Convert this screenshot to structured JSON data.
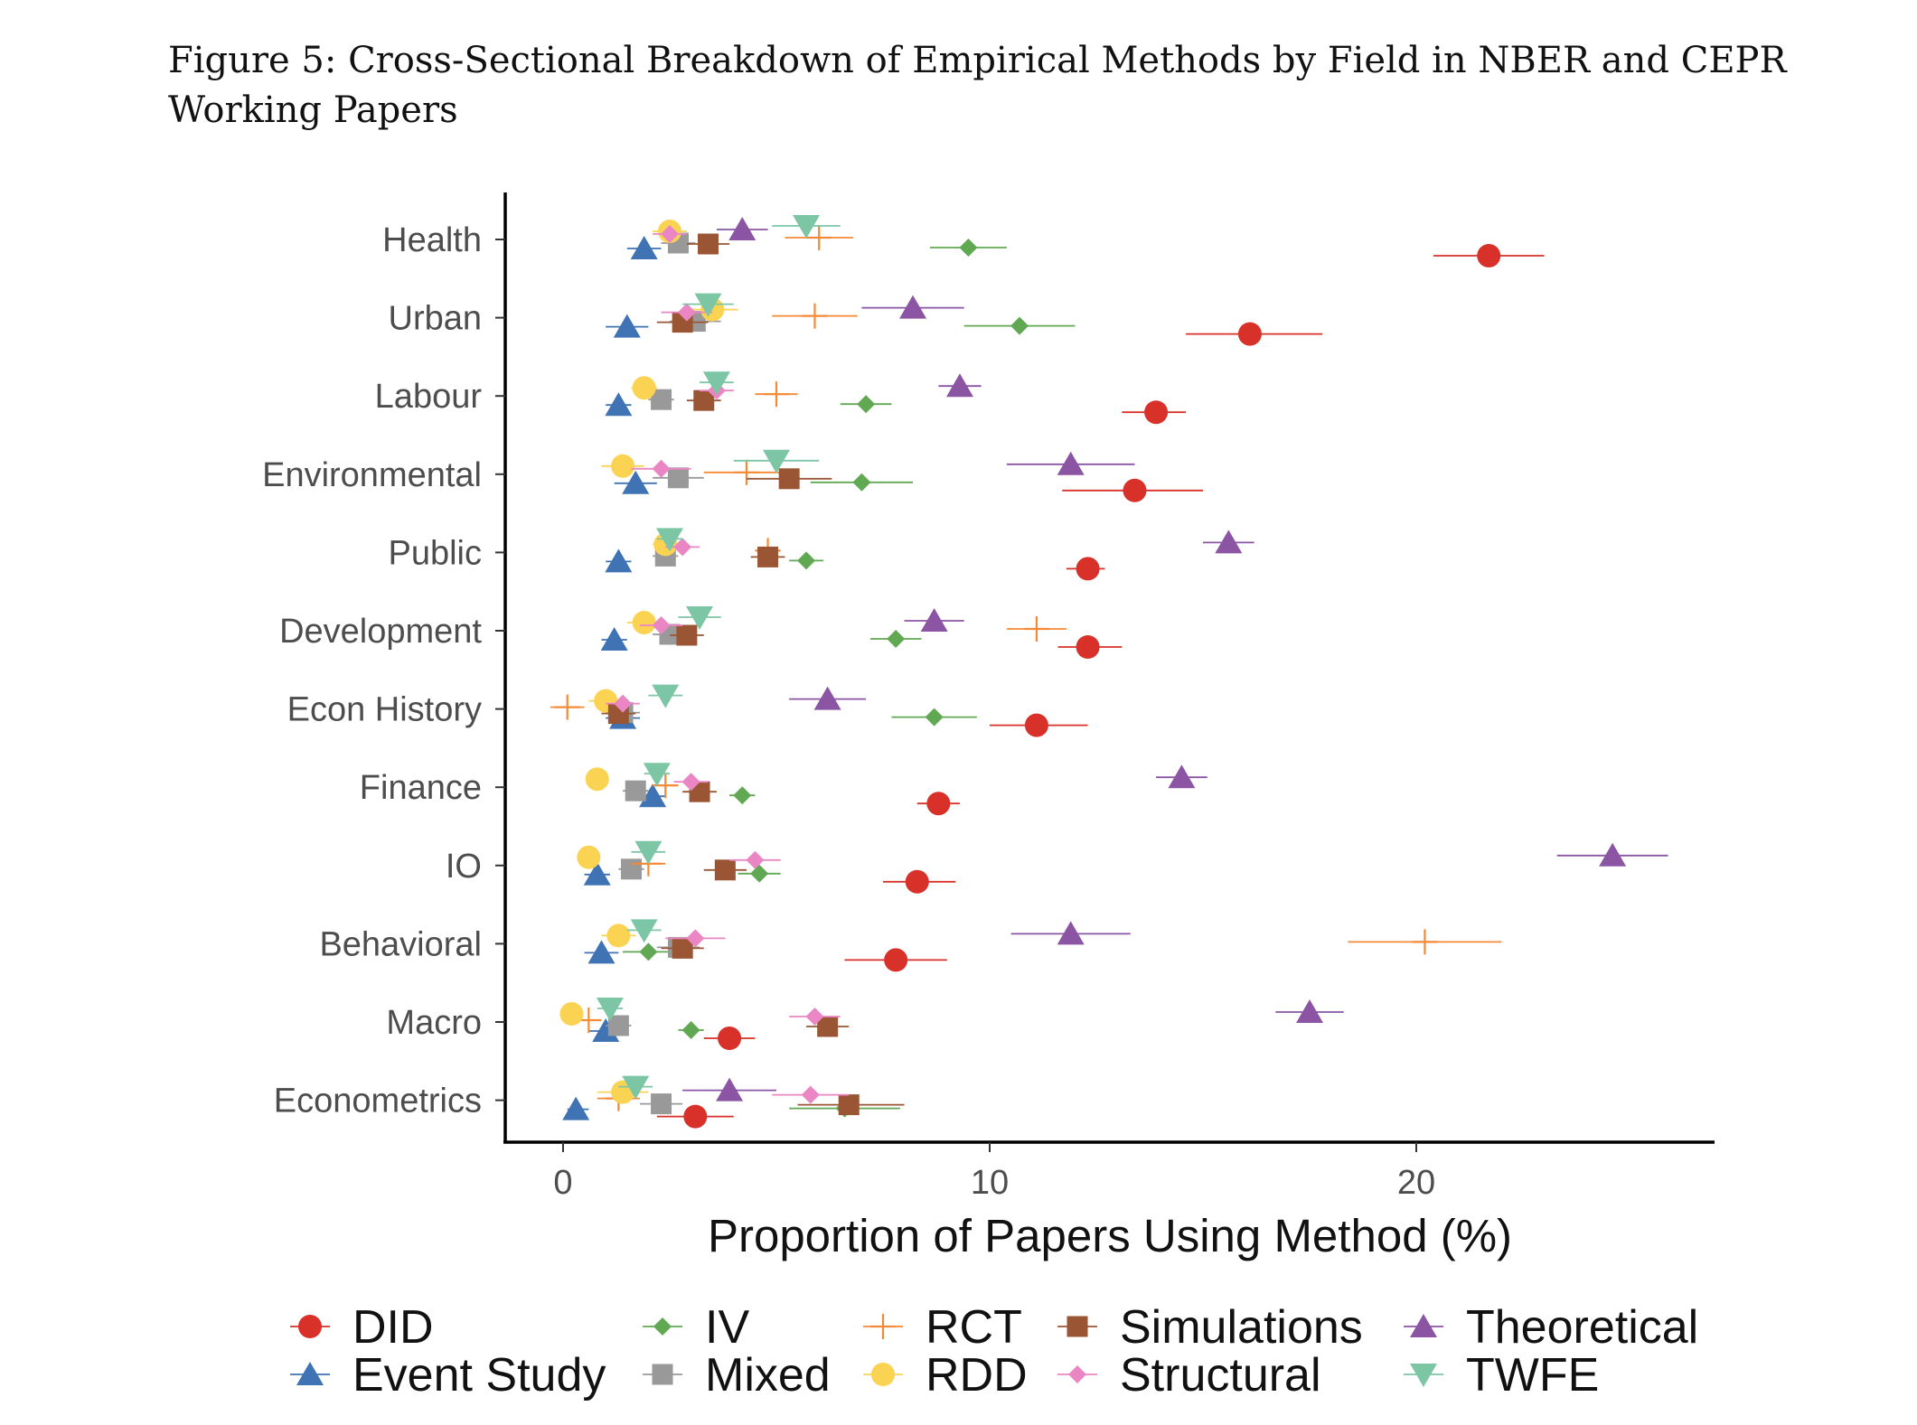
{
  "figure": {
    "caption": "Figure 5: Cross-Sectional Breakdown of Empirical Methods by Field in NBER and CEPR Working Papers"
  },
  "chart_data": {
    "type": "scatter",
    "title": "",
    "xlabel": "Proportion of Papers Using Method (%)",
    "ylabel": "",
    "xlim": [
      -1.3,
      27
    ],
    "xticks": [
      0,
      10,
      20
    ],
    "grid": false,
    "legend_position": "bottom",
    "categories": [
      "Health",
      "Urban",
      "Labour",
      "Environmental",
      "Public",
      "Development",
      "Econ History",
      "Finance",
      "IO",
      "Behavioral",
      "Macro",
      "Econometrics"
    ],
    "series": [
      {
        "name": "DID",
        "color": "#d7312a",
        "shape": "circle",
        "values": [
          21.7,
          16.1,
          13.9,
          13.4,
          12.3,
          12.3,
          11.1,
          8.8,
          8.3,
          7.8,
          3.9,
          3.1
        ],
        "ci": [
          [
            20.4,
            23.0
          ],
          [
            14.6,
            17.8
          ],
          [
            13.1,
            14.6
          ],
          [
            11.7,
            15.0
          ],
          [
            11.8,
            12.7
          ],
          [
            11.6,
            13.1
          ],
          [
            10.0,
            12.3
          ],
          [
            8.3,
            9.3
          ],
          [
            7.5,
            9.2
          ],
          [
            6.6,
            9.0
          ],
          [
            3.3,
            4.5
          ],
          [
            2.2,
            4.0
          ]
        ]
      },
      {
        "name": "Event Study",
        "color": "#3f73b3",
        "shape": "triangle",
        "values": [
          1.9,
          1.5,
          1.3,
          1.7,
          1.3,
          1.2,
          1.4,
          2.1,
          0.8,
          0.9,
          1.0,
          0.3
        ],
        "ci": [
          [
            1.5,
            2.3
          ],
          [
            1.0,
            2.0
          ],
          [
            1.0,
            1.6
          ],
          [
            1.2,
            2.2
          ],
          [
            1.0,
            1.6
          ],
          [
            0.9,
            1.5
          ],
          [
            1.0,
            1.8
          ],
          [
            1.8,
            2.4
          ],
          [
            0.5,
            1.1
          ],
          [
            0.5,
            1.3
          ],
          [
            0.6,
            1.4
          ],
          [
            0.1,
            0.6
          ]
        ]
      },
      {
        "name": "IV",
        "color": "#60a852",
        "shape": "diamond",
        "values": [
          9.5,
          10.7,
          7.1,
          7.0,
          5.7,
          7.8,
          8.7,
          4.2,
          4.6,
          2.0,
          3.0,
          6.6
        ],
        "ci": [
          [
            8.6,
            10.4
          ],
          [
            9.4,
            12.0
          ],
          [
            6.5,
            7.7
          ],
          [
            5.8,
            8.2
          ],
          [
            5.3,
            6.1
          ],
          [
            7.2,
            8.4
          ],
          [
            7.7,
            9.7
          ],
          [
            3.9,
            4.5
          ],
          [
            4.1,
            5.1
          ],
          [
            1.4,
            2.6
          ],
          [
            2.7,
            3.3
          ],
          [
            5.3,
            7.9
          ]
        ]
      },
      {
        "name": "Mixed",
        "color": "#999999",
        "shape": "square",
        "values": [
          2.7,
          3.1,
          2.3,
          2.7,
          2.4,
          2.5,
          1.4,
          1.7,
          1.6,
          2.7,
          1.3,
          2.3
        ],
        "ci": [
          [
            2.3,
            3.1
          ],
          [
            2.5,
            3.7
          ],
          [
            2.0,
            2.6
          ],
          [
            2.1,
            3.3
          ],
          [
            2.1,
            2.7
          ],
          [
            2.1,
            2.9
          ],
          [
            1.0,
            1.8
          ],
          [
            1.4,
            2.0
          ],
          [
            1.3,
            1.9
          ],
          [
            2.2,
            3.2
          ],
          [
            1.0,
            1.6
          ],
          [
            1.8,
            2.8
          ]
        ]
      },
      {
        "name": "RCT",
        "color": "#f48a36",
        "shape": "plus",
        "values": [
          6.0,
          5.9,
          5.0,
          4.3,
          4.8,
          11.1,
          0.1,
          2.4,
          2.0,
          20.2,
          0.6,
          1.3
        ],
        "ci": [
          [
            5.2,
            6.8
          ],
          [
            4.9,
            6.9
          ],
          [
            4.5,
            5.5
          ],
          [
            3.3,
            5.3
          ],
          [
            4.5,
            5.1
          ],
          [
            10.4,
            11.8
          ],
          [
            -0.3,
            0.5
          ],
          [
            2.1,
            2.7
          ],
          [
            1.6,
            2.4
          ],
          [
            18.4,
            22.0
          ],
          [
            0.4,
            0.8
          ],
          [
            0.8,
            1.8
          ]
        ]
      },
      {
        "name": "RDD",
        "color": "#fbd353",
        "shape": "circle",
        "values": [
          2.5,
          3.5,
          1.9,
          1.4,
          2.4,
          1.9,
          1.0,
          0.8,
          0.6,
          1.3,
          0.2,
          1.4
        ],
        "ci": [
          [
            2.1,
            2.9
          ],
          [
            2.9,
            4.1
          ],
          [
            1.6,
            2.2
          ],
          [
            0.9,
            1.9
          ],
          [
            2.1,
            2.7
          ],
          [
            1.5,
            2.3
          ],
          [
            0.6,
            1.4
          ],
          [
            0.6,
            1.0
          ],
          [
            0.4,
            0.8
          ],
          [
            0.9,
            1.7
          ],
          [
            0.0,
            0.4
          ],
          [
            0.8,
            2.0
          ]
        ]
      },
      {
        "name": "Simulations",
        "color": "#9a5634",
        "shape": "square",
        "values": [
          3.4,
          2.8,
          3.3,
          5.3,
          4.8,
          2.9,
          1.3,
          3.2,
          3.8,
          2.8,
          6.2,
          6.7
        ],
        "ci": [
          [
            2.9,
            3.9
          ],
          [
            2.2,
            3.4
          ],
          [
            2.9,
            3.7
          ],
          [
            4.3,
            6.3
          ],
          [
            4.4,
            5.2
          ],
          [
            2.5,
            3.3
          ],
          [
            0.9,
            1.7
          ],
          [
            2.8,
            3.6
          ],
          [
            3.3,
            4.3
          ],
          [
            2.3,
            3.3
          ],
          [
            5.7,
            6.7
          ],
          [
            5.5,
            8.0
          ]
        ]
      },
      {
        "name": "Structural",
        "color": "#ea86c3",
        "shape": "diamond",
        "values": [
          2.5,
          2.9,
          3.6,
          2.3,
          2.8,
          2.3,
          1.4,
          3.0,
          4.5,
          3.1,
          5.9,
          5.8
        ],
        "ci": [
          [
            2.1,
            2.9
          ],
          [
            2.3,
            3.5
          ],
          [
            3.2,
            4.0
          ],
          [
            1.6,
            3.0
          ],
          [
            2.4,
            3.2
          ],
          [
            1.8,
            2.8
          ],
          [
            1.0,
            1.8
          ],
          [
            2.6,
            3.4
          ],
          [
            3.9,
            5.1
          ],
          [
            2.4,
            3.8
          ],
          [
            5.3,
            6.5
          ],
          [
            4.9,
            6.7
          ]
        ]
      },
      {
        "name": "Theoretical",
        "color": "#8b55a3",
        "shape": "triangle",
        "values": [
          4.2,
          8.2,
          9.3,
          11.9,
          15.6,
          8.7,
          6.2,
          14.5,
          24.6,
          11.9,
          17.5,
          3.9
        ],
        "ci": [
          [
            3.6,
            4.8
          ],
          [
            7.0,
            9.4
          ],
          [
            8.8,
            9.8
          ],
          [
            10.4,
            13.4
          ],
          [
            15.0,
            16.2
          ],
          [
            8.0,
            9.4
          ],
          [
            5.3,
            7.1
          ],
          [
            13.9,
            15.1
          ],
          [
            23.3,
            25.9
          ],
          [
            10.5,
            13.3
          ],
          [
            16.7,
            18.3
          ],
          [
            2.8,
            5.0
          ]
        ]
      },
      {
        "name": "TWFE",
        "color": "#7cc6a6",
        "shape": "triangle-down",
        "values": [
          5.7,
          3.4,
          3.6,
          5.0,
          2.5,
          3.2,
          2.4,
          2.2,
          2.0,
          1.9,
          1.1,
          1.7
        ],
        "ci": [
          [
            4.9,
            6.5
          ],
          [
            2.8,
            4.0
          ],
          [
            3.2,
            4.0
          ],
          [
            4.0,
            6.0
          ],
          [
            2.2,
            2.8
          ],
          [
            2.7,
            3.7
          ],
          [
            2.0,
            2.8
          ],
          [
            1.9,
            2.5
          ],
          [
            1.6,
            2.4
          ],
          [
            1.5,
            2.3
          ],
          [
            0.8,
            1.4
          ],
          [
            1.3,
            2.1
          ]
        ]
      }
    ]
  }
}
